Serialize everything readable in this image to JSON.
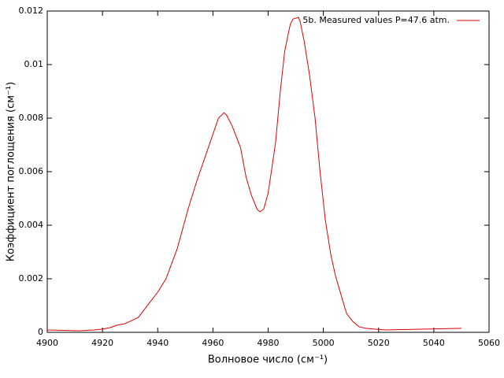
{
  "chart_data": {
    "type": "line",
    "xlabel": "Волновое число (см⁻¹)",
    "ylabel": "Коэффициент поглощения (см⁻¹)",
    "legend": "top-right",
    "x": [
      4900,
      4911.4,
      4917,
      4920,
      4923,
      4925,
      4928,
      4930,
      4933,
      4937,
      4940,
      4943,
      4947,
      4951,
      4954,
      4958,
      4960,
      4962,
      4964,
      4965,
      4967,
      4970,
      4972,
      4974,
      4976,
      4977,
      4978.4,
      4980,
      4981.3,
      4982.7,
      4984.4,
      4986,
      4988,
      4989,
      4991,
      4991.6,
      4993,
      4995,
      4997,
      4998.7,
      5000.7,
      5002.7,
      5004.4,
      5006.4,
      5008.4,
      5010.7,
      5013,
      5015.5,
      5018.4,
      5022.6,
      5037,
      5050
    ],
    "series": [
      {
        "name": "5b. Measured values  P=47.6 atm.",
        "color": "#e00000",
        "values": [
          9e-05,
          6e-05,
          9e-05,
          0.00012,
          0.00018,
          0.00026,
          0.00032,
          0.00041,
          0.00056,
          0.0011,
          0.0015,
          0.002,
          0.0031,
          0.0046,
          0.0056,
          0.0068,
          0.0074,
          0.008,
          0.0082,
          0.0081,
          0.0077,
          0.0069,
          0.0058,
          0.0051,
          0.0046,
          0.0045,
          0.0046,
          0.0052,
          0.0061,
          0.0071,
          0.009,
          0.0105,
          0.0115,
          0.0117,
          0.01176,
          0.0116,
          0.0109,
          0.0096,
          0.008,
          0.0061,
          0.0042,
          0.0029,
          0.0021,
          0.0014,
          0.0007,
          0.0004,
          0.0002,
          0.00015,
          0.00012,
          9e-05,
          0.00012,
          0.00015
        ]
      }
    ],
    "xlim": [
      4900,
      5060
    ],
    "xticks": [
      4900,
      4920,
      4940,
      4960,
      4980,
      5000,
      5020,
      5040,
      5060
    ],
    "ylim": [
      0,
      0.012
    ],
    "yticks": [
      0,
      0.002,
      0.004,
      0.006,
      0.008,
      0.01,
      0.012
    ]
  }
}
